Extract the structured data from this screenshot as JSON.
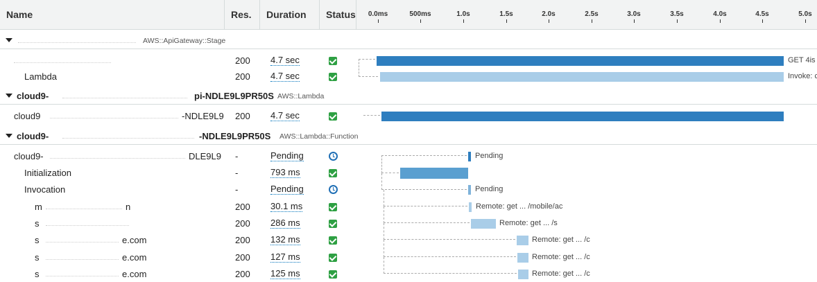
{
  "header": {
    "name": "Name",
    "res": "Res.",
    "duration": "Duration",
    "status": "Status",
    "ticks": [
      "0.0ms",
      "500ms",
      "1.0s",
      "1.5s",
      "2.0s",
      "2.5s",
      "3.0s",
      "3.5s",
      "4.0s",
      "4.5s",
      "5.0s"
    ]
  },
  "groups": [
    {
      "name": "",
      "name_suffix": "",
      "type": "AWS::ApiGateway::Stage"
    },
    {
      "name": "cloud9-",
      "name_suffix": "pi-NDLE9L9PR50S",
      "type": "AWS::Lambda"
    },
    {
      "name": "cloud9-",
      "name_suffix": "-NDLE9L9PR50S",
      "type": "AWS::Lambda::Function"
    }
  ],
  "rows": [
    {
      "name": "",
      "res": "200",
      "duration": "4.7 sec",
      "status": "ok",
      "label": "GET 4is"
    },
    {
      "name": "Lambda",
      "res": "200",
      "duration": "4.7 sec",
      "status": "ok",
      "label": "Invoke: c"
    },
    {
      "name": "cloud9",
      "name_suffix": "-NDLE9L9",
      "res": "200",
      "duration": "4.7 sec",
      "status": "ok",
      "label": ""
    },
    {
      "name": "cloud9-",
      "name_suffix": "DLE9L9",
      "res": "-",
      "duration": "Pending",
      "status": "pending",
      "label": "Pending"
    },
    {
      "name": "Initialization",
      "res": "-",
      "duration": "793 ms",
      "status": "ok",
      "label": ""
    },
    {
      "name": "Invocation",
      "res": "-",
      "duration": "Pending",
      "status": "pending",
      "label": "Pending"
    },
    {
      "name": "m",
      "name_suffix": "n",
      "res": "200",
      "duration": "30.1 ms",
      "status": "ok",
      "label": "Remote: get ... /mobile/ac"
    },
    {
      "name": "s",
      "name_suffix": "",
      "res": "200",
      "duration": "286 ms",
      "status": "ok",
      "label": "Remote: get ... /s"
    },
    {
      "name": "s",
      "name_suffix": "e.com",
      "res": "200",
      "duration": "132 ms",
      "status": "ok",
      "label": "Remote: get ... /c"
    },
    {
      "name": "s",
      "name_suffix": "e.com",
      "res": "200",
      "duration": "127 ms",
      "status": "ok",
      "label": "Remote: get ... /c"
    },
    {
      "name": "s",
      "name_suffix": "e.com",
      "res": "200",
      "duration": "125 ms",
      "status": "ok",
      "label": "Remote: get ... /c"
    }
  ],
  "colors": {
    "dark_bar": "#2e7ebf",
    "light_bar": "#a9cde8",
    "mid_bar": "#5a9fd0",
    "ok": "#2ea043",
    "pending": "#1f6fb5"
  }
}
